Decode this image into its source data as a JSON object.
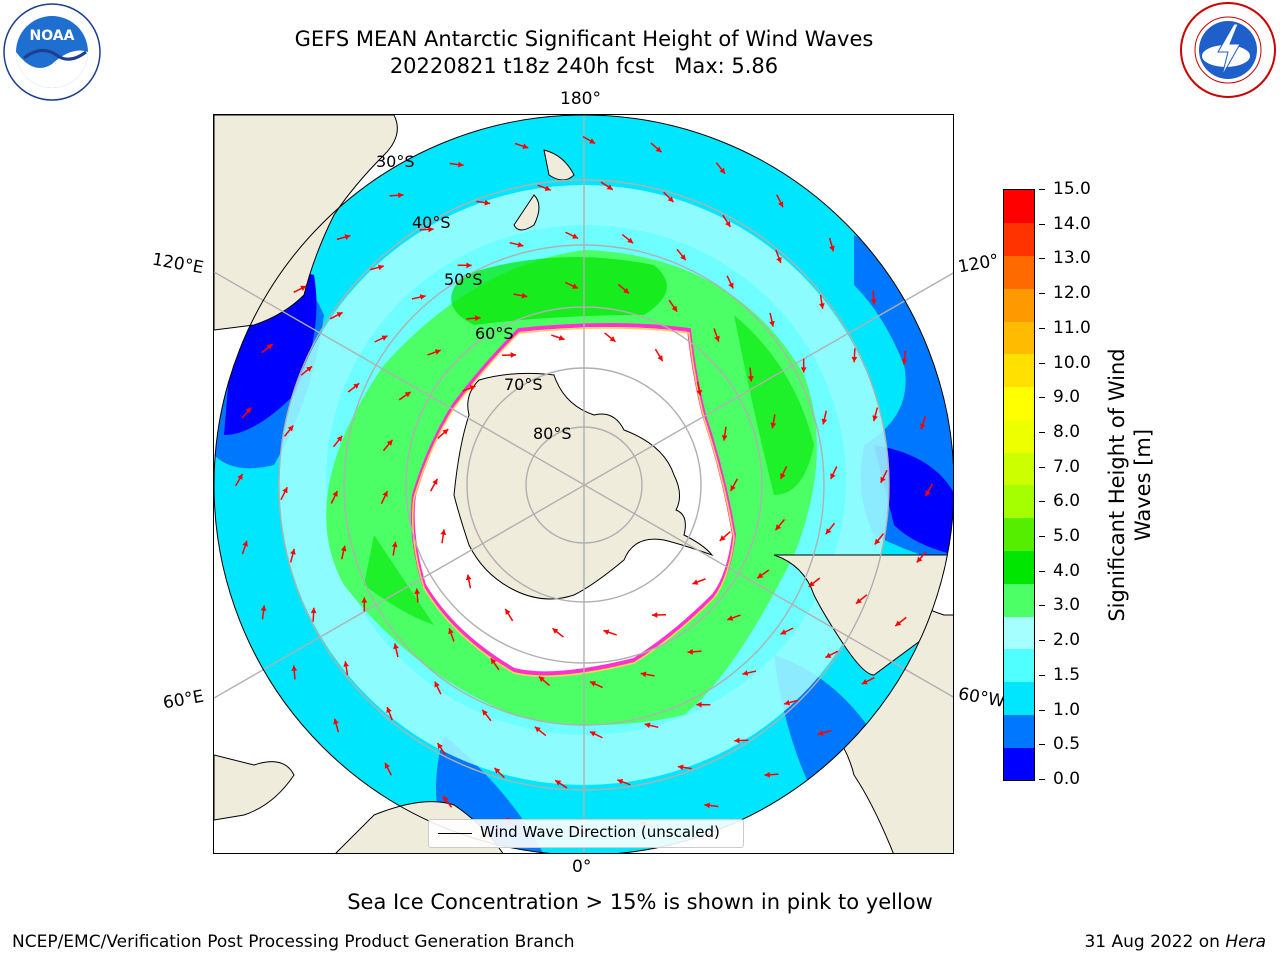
{
  "title": {
    "line1": "GEFS MEAN Antarctic Significant Height of Wind Waves",
    "line2": "20220821 t18z 240h fcst   Max: 5.86"
  },
  "logos": {
    "left": "noaa-logo",
    "right": "nws-logo"
  },
  "map": {
    "projection": "south-polar-stereographic",
    "lon_labels": {
      "top": "180°",
      "bottom": "0°",
      "upper_left": "120°E",
      "upper_right": "120°",
      "lower_left": "60°E",
      "lower_right": "60°W"
    },
    "lat_labels": [
      "30°S",
      "40°S",
      "50°S",
      "60°S",
      "70°S",
      "80°S"
    ],
    "colors": {
      "land": "#efecdc",
      "ice_edge": "#ff33cc",
      "arrow": "#ff0000",
      "grid": "#b0b0b0"
    }
  },
  "legend": {
    "label": "Wind Wave Direction (unscaled)"
  },
  "colorbar": {
    "label_line1": "Significant Height of Wind",
    "label_line2": "Waves [m]",
    "ticks": [
      "15.0",
      "14.0",
      "13.0",
      "12.0",
      "11.0",
      "10.0",
      "9.0",
      "8.0",
      "7.0",
      "6.0",
      "5.0",
      "4.0",
      "3.0",
      "2.0",
      "1.5",
      "1.0",
      "0.5",
      "0.0"
    ],
    "colors_bottom_to_top": [
      "#0000ff",
      "#0077ff",
      "#00e6ff",
      "#50ffff",
      "#a6ffff",
      "#4dff66",
      "#00e600",
      "#55ee00",
      "#a6ff00",
      "#ccff00",
      "#eeff00",
      "#ffff00",
      "#ffe000",
      "#ffbb00",
      "#ff9900",
      "#ff6a00",
      "#ff3300",
      "#ff0000"
    ]
  },
  "caption": "Sea Ice Concentration > 15% is shown in pink to yellow",
  "footer": {
    "left": "NCEP/EMC/Verification Post Processing Product Generation Branch",
    "right_date": "31 Aug 2022 on ",
    "right_host": "Hera"
  }
}
